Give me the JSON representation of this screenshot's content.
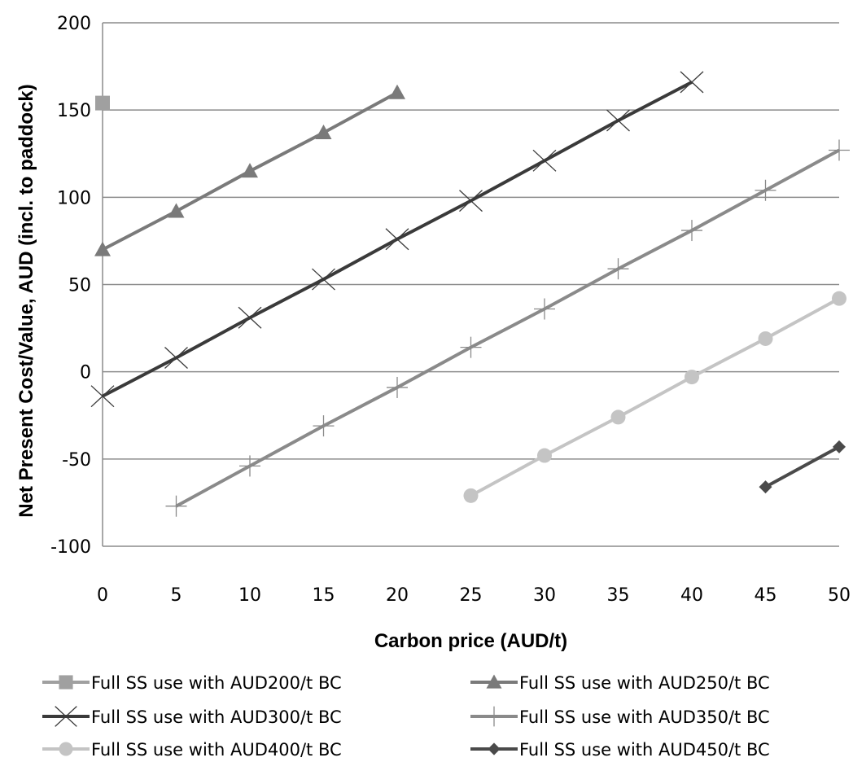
{
  "chart_data": {
    "type": "line",
    "xlabel": "Carbon price (AUD/t)",
    "ylabel": "Net Present Cost/Value, AUD (incl. to paddock)",
    "xlim": [
      0,
      50
    ],
    "ylim": [
      -100,
      200
    ],
    "x_ticks": [
      "0",
      "5",
      "10",
      "15",
      "20",
      "25",
      "30",
      "35",
      "40",
      "45",
      "50"
    ],
    "y_ticks": [
      "200",
      "150",
      "100",
      "50",
      "0",
      "-50",
      "-100"
    ],
    "grid": "horizontal",
    "legend_position": "bottom",
    "series": [
      {
        "name": "Full SS use with AUD200/t BC",
        "marker": "square",
        "color": "#a0a0a0",
        "points": [
          [
            0,
            154
          ]
        ]
      },
      {
        "name": "Full SS use with AUD250/t BC",
        "marker": "triangle",
        "color": "#7a7a7a",
        "points": [
          [
            0,
            70
          ],
          [
            5,
            92
          ],
          [
            10,
            115
          ],
          [
            15,
            137
          ],
          [
            20,
            160
          ]
        ]
      },
      {
        "name": "Full SS use with AUD300/t BC",
        "marker": "x",
        "color": "#3a3a3a",
        "points": [
          [
            0,
            -14
          ],
          [
            5,
            8
          ],
          [
            10,
            31
          ],
          [
            15,
            53
          ],
          [
            20,
            76
          ],
          [
            25,
            98
          ],
          [
            30,
            121
          ],
          [
            35,
            144
          ],
          [
            40,
            166
          ]
        ]
      },
      {
        "name": "Full SS use with AUD350/t BC",
        "marker": "plus",
        "color": "#8a8a8a",
        "points": [
          [
            5,
            -77
          ],
          [
            10,
            -54
          ],
          [
            15,
            -31
          ],
          [
            20,
            -9
          ],
          [
            25,
            14
          ],
          [
            30,
            36
          ],
          [
            35,
            59
          ],
          [
            40,
            81
          ],
          [
            45,
            104
          ],
          [
            50,
            127
          ]
        ]
      },
      {
        "name": "Full SS use with AUD400/t BC",
        "marker": "circle",
        "color": "#c4c4c4",
        "points": [
          [
            25,
            -71
          ],
          [
            30,
            -48
          ],
          [
            35,
            -26
          ],
          [
            40,
            -3
          ],
          [
            45,
            19
          ],
          [
            50,
            42
          ]
        ]
      },
      {
        "name": "Full SS use with AUD450/t BC",
        "marker": "diamond",
        "color": "#4a4a4a",
        "points": [
          [
            45,
            -66
          ],
          [
            50,
            -43
          ]
        ]
      }
    ]
  }
}
